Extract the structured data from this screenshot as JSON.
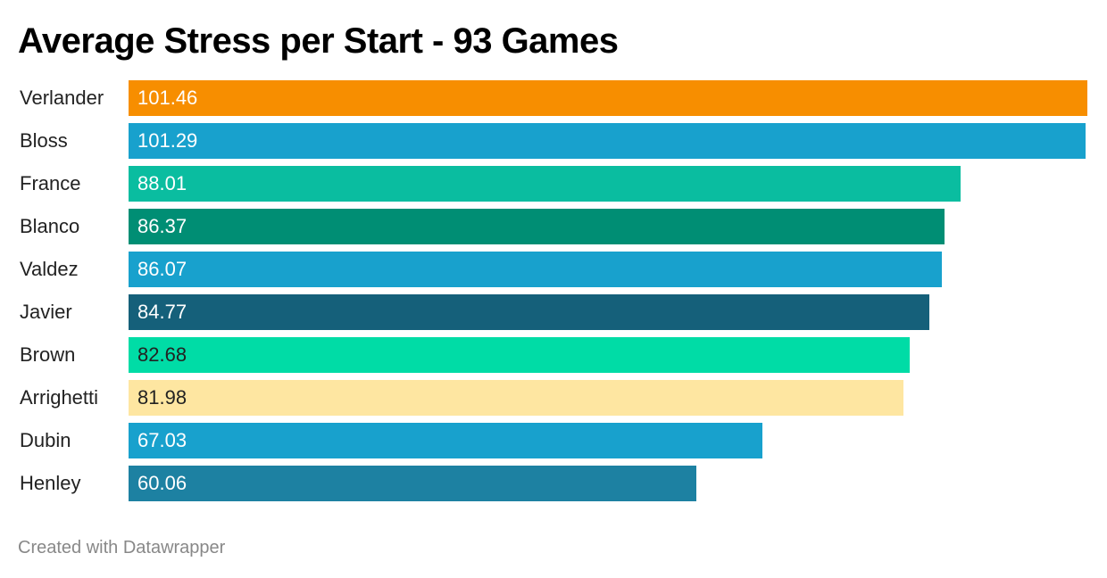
{
  "chart_data": {
    "type": "bar",
    "orientation": "horizontal",
    "title": "Average Stress per Start - 93 Games",
    "categories": [
      "Verlander",
      "Bloss",
      "France",
      "Blanco",
      "Valdez",
      "Javier",
      "Brown",
      "Arrighetti",
      "Dubin",
      "Henley"
    ],
    "values": [
      101.46,
      101.29,
      88.01,
      86.37,
      86.07,
      84.77,
      82.68,
      81.98,
      67.03,
      60.06
    ],
    "value_labels": [
      "101.46",
      "101.29",
      "88.01",
      "86.37",
      "86.07",
      "84.77",
      "82.68",
      "81.98",
      "67.03",
      "60.06"
    ],
    "colors": [
      "#f78e00",
      "#18a1cd",
      "#0abda0",
      "#008e74",
      "#18a1cd",
      "#15607a",
      "#00dca6",
      "#fee6a1",
      "#18a1cd",
      "#1d81a2"
    ],
    "label_colors": [
      "#ffffff",
      "#ffffff",
      "#ffffff",
      "#ffffff",
      "#ffffff",
      "#ffffff",
      "#222222",
      "#222222",
      "#ffffff",
      "#ffffff"
    ],
    "xlim": [
      0,
      101.46
    ],
    "grid": false,
    "legend": "none"
  },
  "footer": {
    "credit": "Created with Datawrapper"
  }
}
